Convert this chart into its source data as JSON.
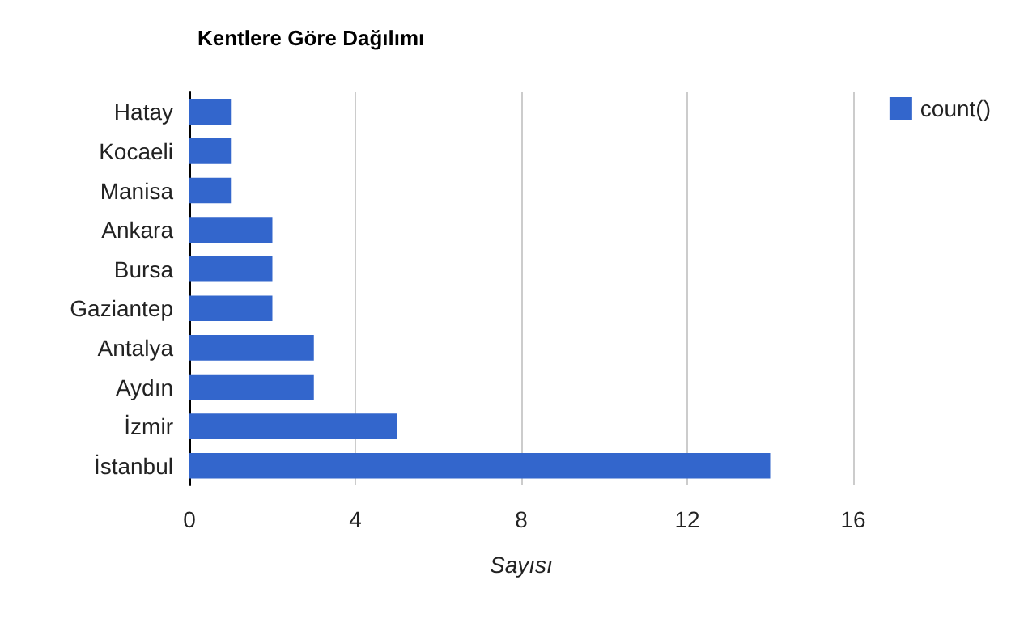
{
  "chart_data": {
    "type": "bar",
    "orientation": "horizontal",
    "title": "Kentlere Göre Dağılımı",
    "xlabel": "Sayısı",
    "categories": [
      "Hatay",
      "Kocaeli",
      "Manisa",
      "Ankara",
      "Bursa",
      "Gaziantep",
      "Antalya",
      "Aydın",
      "İzmir",
      "İstanbul"
    ],
    "series": [
      {
        "name": "count()",
        "color": "#3366cc",
        "values": [
          1,
          1,
          1,
          2,
          2,
          2,
          3,
          3,
          5,
          14
        ]
      }
    ],
    "xlim": [
      0,
      16
    ],
    "xticks": [
      0,
      4,
      8,
      12,
      16
    ],
    "grid": "x",
    "legend": "top right"
  }
}
